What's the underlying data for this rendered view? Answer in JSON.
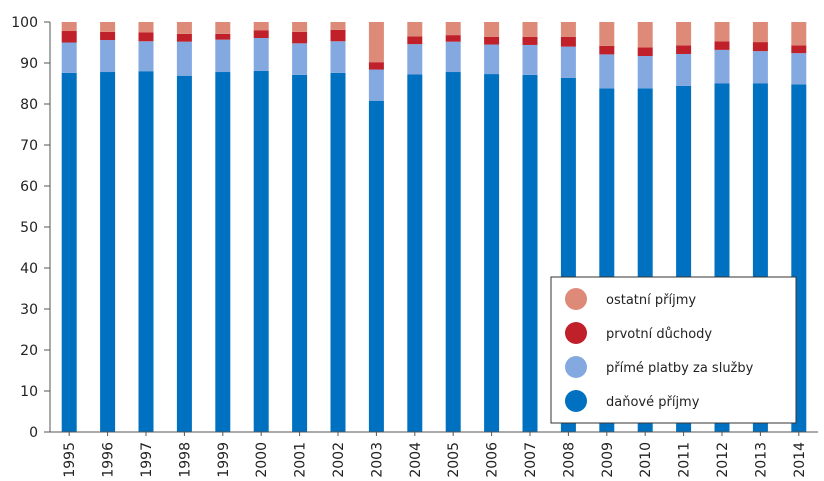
{
  "chart_data": {
    "type": "bar",
    "stacked": true,
    "categories": [
      "1995",
      "1996",
      "1997",
      "1998",
      "1999",
      "2000",
      "2001",
      "2002",
      "2003",
      "2004",
      "2005",
      "2006",
      "2007",
      "2008",
      "2009",
      "2010",
      "2011",
      "2012",
      "2013",
      "2014"
    ],
    "series": [
      {
        "name": "daňové příjmy",
        "color": "#0070c0",
        "values": [
          87.6,
          87.8,
          88.0,
          86.9,
          87.8,
          88.1,
          87.1,
          87.6,
          80.8,
          87.2,
          87.8,
          87.3,
          87.1,
          86.4,
          83.8,
          83.8,
          84.4,
          85.0,
          85.0,
          84.8
        ]
      },
      {
        "name": "přímé platby za služby",
        "color": "#84a9e0",
        "values": [
          7.4,
          7.8,
          7.3,
          8.3,
          7.9,
          8.0,
          7.7,
          7.7,
          7.6,
          7.4,
          7.4,
          7.2,
          7.3,
          7.6,
          8.3,
          7.9,
          7.8,
          8.2,
          7.9,
          7.6
        ]
      },
      {
        "name": "prvotní důchody",
        "color": "#c0202a",
        "values": [
          2.8,
          2.0,
          2.2,
          1.9,
          1.4,
          1.9,
          2.8,
          2.8,
          1.8,
          1.9,
          1.6,
          1.9,
          2.0,
          2.4,
          2.1,
          2.1,
          2.1,
          2.1,
          2.2,
          1.9
        ]
      },
      {
        "name": "ostatní příjmy",
        "color": "#de8a78",
        "values": [
          2.2,
          2.4,
          2.5,
          2.9,
          2.9,
          2.0,
          2.4,
          1.9,
          9.8,
          3.5,
          3.2,
          3.6,
          3.6,
          3.6,
          5.8,
          6.2,
          5.7,
          4.7,
          4.9,
          5.7
        ]
      }
    ],
    "legend_order": [
      "ostatní příjmy",
      "prvotní důchody",
      "přímé platby za služby",
      "daňové příjmy"
    ],
    "ylim": [
      0,
      100
    ],
    "yticks": [
      0,
      10,
      20,
      30,
      40,
      50,
      60,
      70,
      80,
      90,
      100
    ],
    "xlabel": "",
    "ylabel": "",
    "grid": false,
    "legend_position": "bottom-right"
  }
}
